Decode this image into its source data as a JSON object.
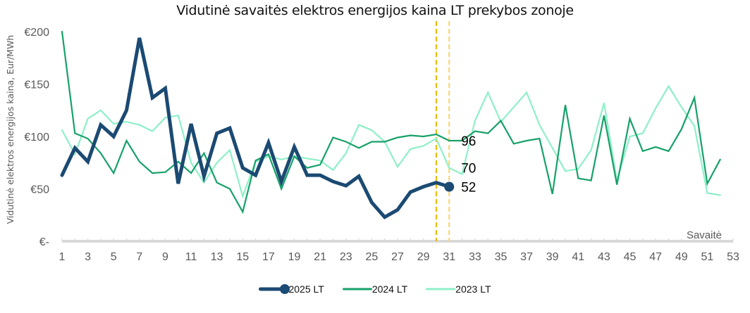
{
  "chart_data": {
    "type": "line",
    "title": "Vidutinė savaitės elektros energijos kaina LT prekybos zonoje",
    "xlabel": "Savaitė",
    "ylabel": "Vidutinė elektros energijos kaina, Eur/MWh",
    "xlim": [
      1,
      53
    ],
    "ylim": [
      0,
      200
    ],
    "x_ticks": [
      "1",
      "3",
      "5",
      "7",
      "9",
      "11",
      "13",
      "15",
      "17",
      "19",
      "21",
      "23",
      "25",
      "27",
      "29",
      "31",
      "33",
      "35",
      "37",
      "39",
      "41",
      "43",
      "45",
      "47",
      "49",
      "51",
      "53"
    ],
    "y_ticks": [
      {
        "value": 0,
        "label": "€-"
      },
      {
        "value": 50,
        "label": "€50"
      },
      {
        "value": 100,
        "label": "€100"
      },
      {
        "value": 150,
        "label": "€150"
      },
      {
        "value": 200,
        "label": "€200"
      }
    ],
    "grid": false,
    "legend_position": "bottom",
    "reference_lines": [
      {
        "x": 30,
        "color": "#F0B400",
        "style": "dashed"
      },
      {
        "x": 31,
        "color": "#F5D36A",
        "style": "dashed"
      }
    ],
    "series": [
      {
        "name": "2025 LT",
        "color": "#1B4A72",
        "weight": "thick",
        "marker_last": true,
        "end_label": "52",
        "start_week": 1,
        "values": [
          63,
          89,
          76,
          111,
          100,
          125,
          194,
          137,
          146,
          55,
          112,
          62,
          103,
          108,
          70,
          63,
          94,
          57,
          90,
          63,
          63,
          57,
          53,
          62,
          37,
          23,
          30,
          47,
          52,
          56,
          52
        ]
      },
      {
        "name": "2024 LT",
        "color": "#17A16A",
        "weight": "medium",
        "end_label": "96",
        "end_label_week": 31,
        "start_week": 1,
        "values": [
          200,
          103,
          98,
          84,
          65,
          96,
          76,
          65,
          66,
          76,
          65,
          84,
          56,
          50,
          28,
          77,
          83,
          50,
          81,
          70,
          73,
          99,
          95,
          89,
          95,
          95,
          99,
          101,
          100,
          102,
          96,
          96,
          105,
          103,
          115,
          93,
          96,
          98,
          45,
          130,
          60,
          58,
          120,
          54,
          117,
          86,
          90,
          86,
          107,
          137,
          55,
          78
        ]
      },
      {
        "name": "2023 LT",
        "color": "#8EF0C8",
        "weight": "thin",
        "end_label": "70",
        "end_label_week": 31,
        "start_week": 1,
        "values": [
          106,
          83,
          117,
          125,
          112,
          114,
          111,
          105,
          118,
          120,
          75,
          56,
          75,
          87,
          43,
          76,
          81,
          78,
          81,
          79,
          77,
          68,
          84,
          111,
          106,
          95,
          71,
          88,
          91,
          98,
          70,
          64,
          115,
          142,
          114,
          128,
          142,
          111,
          89,
          67,
          69,
          87,
          132,
          58,
          100,
          103,
          127,
          148,
          128,
          110,
          46,
          44
        ]
      }
    ]
  }
}
